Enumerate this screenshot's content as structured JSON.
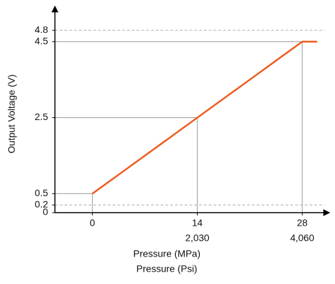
{
  "chart_data": {
    "type": "line",
    "x_label": "Pressure (MPa)",
    "x2_label": "Pressure (Psi)",
    "y_label": "Output Voltage (V)",
    "x": [
      0,
      14,
      28,
      30
    ],
    "series": [
      {
        "color": "#f05a1c",
        "values": [
          0.5,
          2.5,
          4.5,
          4.5
        ]
      }
    ],
    "xlim": [
      -5,
      31
    ],
    "xticks": [
      0,
      14,
      28
    ],
    "x2lim": [
      -725,
      4495
    ],
    "x2ticks": [
      {
        "value": 2030,
        "label": "2,030"
      },
      {
        "value": 4060,
        "label": "4,060"
      }
    ],
    "ylim": [
      0,
      5.2
    ],
    "yticks": [
      0,
      0.2,
      0.5,
      2.5,
      4.5,
      4.8
    ]
  }
}
